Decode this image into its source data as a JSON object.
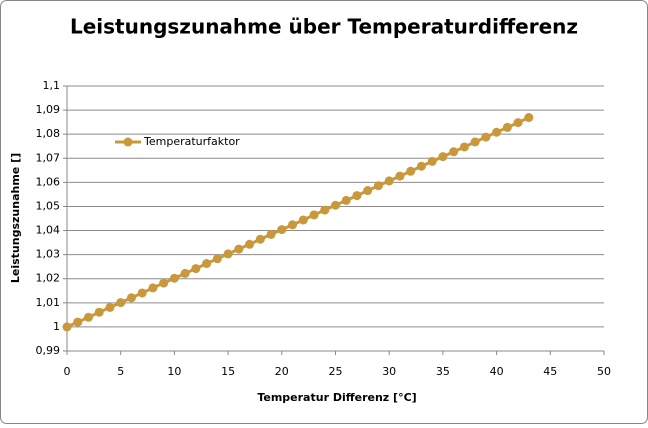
{
  "chart_data": {
    "type": "line",
    "title": "Leistungszunahme über Temperaturdifferenz",
    "xlabel": "Temperatur Differenz [°C]",
    "ylabel": "Leistungszunahme []",
    "x": [
      0,
      1,
      2,
      3,
      4,
      5,
      6,
      7,
      8,
      9,
      10,
      11,
      12,
      13,
      14,
      15,
      16,
      17,
      18,
      19,
      20,
      21,
      22,
      23,
      24,
      25,
      26,
      27,
      28,
      29,
      30,
      31,
      32,
      33,
      34,
      35,
      36,
      37,
      38,
      39,
      40,
      41,
      42,
      43
    ],
    "series": [
      {
        "name": "Temperaturfaktor",
        "color": "#c8983a",
        "values": [
          1.0,
          1.002,
          1.004,
          1.0061,
          1.0081,
          1.0101,
          1.0121,
          1.0141,
          1.0162,
          1.0182,
          1.0202,
          1.0222,
          1.0242,
          1.0263,
          1.0283,
          1.0303,
          1.0323,
          1.0343,
          1.0364,
          1.0384,
          1.0404,
          1.0424,
          1.0444,
          1.0465,
          1.0485,
          1.0505,
          1.0525,
          1.0545,
          1.0566,
          1.0586,
          1.0606,
          1.0626,
          1.0646,
          1.0667,
          1.0687,
          1.0707,
          1.0727,
          1.0747,
          1.0768,
          1.0788,
          1.0808,
          1.0828,
          1.0848,
          1.0869
        ]
      }
    ],
    "xlim": [
      0,
      50
    ],
    "xticks": [
      0,
      5,
      10,
      15,
      20,
      25,
      30,
      35,
      40,
      45,
      50
    ],
    "ylim": [
      0.99,
      1.1
    ],
    "yticks": [
      {
        "value": 0.99,
        "label": "0,99"
      },
      1,
      {
        "value": 1.01,
        "label": "1,01"
      },
      {
        "value": 1.02,
        "label": "1,02"
      },
      {
        "value": 1.03,
        "label": "1,03"
      },
      {
        "value": 1.04,
        "label": "1,04"
      },
      {
        "value": 1.05,
        "label": "1,05"
      },
      {
        "value": 1.06,
        "label": "1,06"
      },
      {
        "value": 1.07,
        "label": "1,07"
      },
      {
        "value": 1.08,
        "label": "1,08"
      },
      {
        "value": 1.09,
        "label": "1,09"
      },
      {
        "value": 1.1,
        "label": "1,1"
      }
    ],
    "grid": true,
    "legend": "upper left"
  }
}
